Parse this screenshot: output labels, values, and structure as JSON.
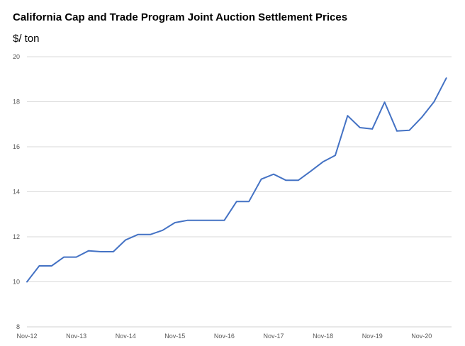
{
  "chart_data": {
    "type": "line",
    "title": "California Cap and Trade Program Joint Auction Settlement Prices",
    "ylabel": "$/ ton",
    "xlabel": "",
    "ylim": [
      8,
      20
    ],
    "yticks": [
      8,
      10,
      12,
      14,
      16,
      18,
      20
    ],
    "xtick_labels": [
      "Nov-12",
      "Nov-13",
      "Nov-14",
      "Nov-15",
      "Nov-16",
      "Nov-17",
      "Nov-18",
      "Nov-19",
      "Nov-20"
    ],
    "grid": true,
    "legend": "none",
    "series": [
      {
        "color": "#4472c4",
        "x": [
          "Nov-12",
          "Feb-13",
          "May-13",
          "Aug-13",
          "Nov-13",
          "Feb-14",
          "May-14",
          "Aug-14",
          "Nov-14",
          "Feb-15",
          "May-15",
          "Aug-15",
          "Nov-15",
          "Feb-16",
          "May-16",
          "Aug-16",
          "Nov-16",
          "Feb-17",
          "May-17",
          "Aug-17",
          "Nov-17",
          "Feb-18",
          "May-18",
          "Aug-18",
          "Nov-18",
          "Feb-19",
          "May-19",
          "Aug-19",
          "Nov-19",
          "Feb-20",
          "May-20",
          "Aug-20",
          "Nov-20",
          "Feb-21",
          "May-21"
        ],
        "values": [
          10.0,
          10.71,
          10.71,
          11.1,
          11.1,
          11.38,
          11.34,
          11.34,
          11.86,
          12.1,
          12.1,
          12.29,
          12.63,
          12.73,
          12.73,
          12.73,
          12.73,
          13.57,
          13.57,
          14.56,
          14.78,
          14.51,
          14.51,
          14.91,
          15.33,
          15.62,
          17.38,
          16.85,
          16.79,
          17.98,
          16.7,
          16.73,
          17.3,
          17.99,
          19.05
        ]
      }
    ]
  }
}
